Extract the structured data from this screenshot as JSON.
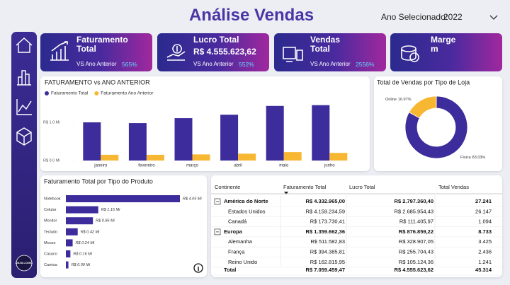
{
  "header": {
    "title": "Análise Vendas",
    "year_label": "Ano Selecionado:",
    "year": "2022"
  },
  "sidebar": {
    "logo": "DATA LOGIC"
  },
  "kpis": [
    {
      "title": "Faturamento Total",
      "compare_label": "VS Ano Anterior",
      "change": "565%"
    },
    {
      "title": "Lucro Total",
      "value": "R$ 4.555.623,62",
      "compare_label": "VS Ano Anterior",
      "change": "552%"
    },
    {
      "title": "Vendas Total",
      "compare_label": "VS Ano Anterior",
      "change": "2556%"
    },
    {
      "title": "Margem"
    }
  ],
  "chart_data": [
    {
      "type": "bar",
      "title": "FATURAMENTO vs ANO ANTERIOR",
      "categories": [
        "janeiro",
        "fevereiro",
        "março",
        "abril",
        "maio",
        "junho"
      ],
      "series": [
        {
          "name": "Faturamento Total",
          "color": "#3d2c9c",
          "values": [
            1.0,
            0.98,
            1.11,
            1.2,
            1.43,
            1.45
          ]
        },
        {
          "name": "Faturamento Ano Anterior",
          "color": "#f7b733",
          "values": [
            0.15,
            0.15,
            0.16,
            0.18,
            0.22,
            0.2
          ]
        }
      ],
      "ylim": [
        0,
        1.6
      ],
      "yticks": [
        {
          "value": 0,
          "label": "R$ 0.0 Mi"
        },
        {
          "value": 1,
          "label": "R$ 1.0 Mi"
        }
      ],
      "grid": false,
      "legend": "top-left"
    },
    {
      "type": "pie",
      "title": "Total de Vendas por Tipo de Loja",
      "categories": [
        "Física",
        "Online"
      ],
      "values": [
        83.03,
        16.97
      ],
      "value_labels": [
        "83.03%",
        "16.97%"
      ],
      "colors": [
        "#3d2c9c",
        "#f7b733"
      ],
      "donut": true
    },
    {
      "type": "hbar",
      "title": "Faturamento Total por Tipo do Produto",
      "categories": [
        "Notebook",
        "Celular",
        "Monitor",
        "Teclado",
        "Mouse",
        "Casaco",
        "Camisa"
      ],
      "values": [
        4.05,
        1.15,
        0.96,
        0.42,
        0.24,
        0.16,
        0.09
      ],
      "value_labels": [
        "R$ 4.05 Mi",
        "R$ 1.15 Mi",
        "R$ 0.96 Mi",
        "R$ 0.42 Mi",
        "R$ 0.24 Mi",
        "R$ 0.16 Mi",
        "R$ 0.09 Mi"
      ],
      "color": "#3d2c9c"
    }
  ],
  "table": {
    "columns": [
      "Continente",
      "Faturamento Total",
      "Lucro Total",
      "Total Vendas"
    ],
    "groups": [
      {
        "name": "América do Norte",
        "values": [
          "R$ 4.332.965,00",
          "R$ 2.797.360,40",
          "27.241"
        ],
        "children": [
          [
            "Estados Unidos",
            "R$ 4.159.234,59",
            "R$ 2.685.954,43",
            "26.147"
          ],
          [
            "Canadá",
            "R$ 173.730,41",
            "R$ 111.405,97",
            "1.094"
          ]
        ]
      },
      {
        "name": "Europa",
        "values": [
          "R$ 1.359.662,36",
          "R$ 876.859,22",
          "8.733"
        ],
        "children": [
          [
            "Alemanha",
            "R$ 511.582,83",
            "R$ 328.907,05",
            "3.425"
          ],
          [
            "França",
            "R$ 394.385,81",
            "R$ 255.704,43",
            "2.436"
          ],
          [
            "Reino Unido",
            "R$ 162.815,95",
            "R$ 105.124,36",
            "1.241"
          ]
        ]
      }
    ],
    "total": [
      "Total",
      "R$ 7.059.459,47",
      "R$ 4.555.623,62",
      "45.314"
    ]
  }
}
